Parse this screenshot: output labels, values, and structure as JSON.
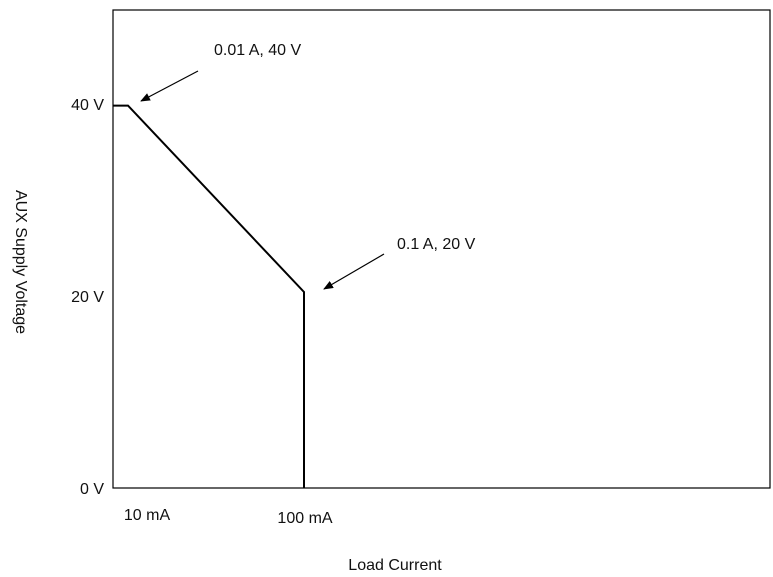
{
  "chart_data": {
    "type": "line",
    "title": "",
    "xlabel": "Load Current",
    "ylabel": "AUX Supply Voltage",
    "x_scale": "categorical",
    "x_ticks": [
      {
        "label": "10 mA",
        "value": 0.01
      },
      {
        "label": "100 mA",
        "value": 0.1
      }
    ],
    "y_ticks": [
      {
        "label": "0 V",
        "value": 0
      },
      {
        "label": "20 V",
        "value": 20
      },
      {
        "label": "40 V",
        "value": 40
      }
    ],
    "ylim": [
      0,
      50
    ],
    "grid": false,
    "legend": "none",
    "series": [
      {
        "points": [
          {
            "x": 0.0,
            "y": 40
          },
          {
            "x": 0.01,
            "y": 40
          },
          {
            "x": 0.1,
            "y": 20.5
          },
          {
            "x": 0.1,
            "y": 0
          }
        ]
      }
    ],
    "annotations": [
      {
        "text": "0.01 A, 40 V",
        "x": 0.01,
        "y": 40
      },
      {
        "text": "0.1 A, 20 V",
        "x": 0.1,
        "y": 20
      }
    ],
    "colors": {
      "line": "#000000",
      "text": "#111111"
    }
  }
}
